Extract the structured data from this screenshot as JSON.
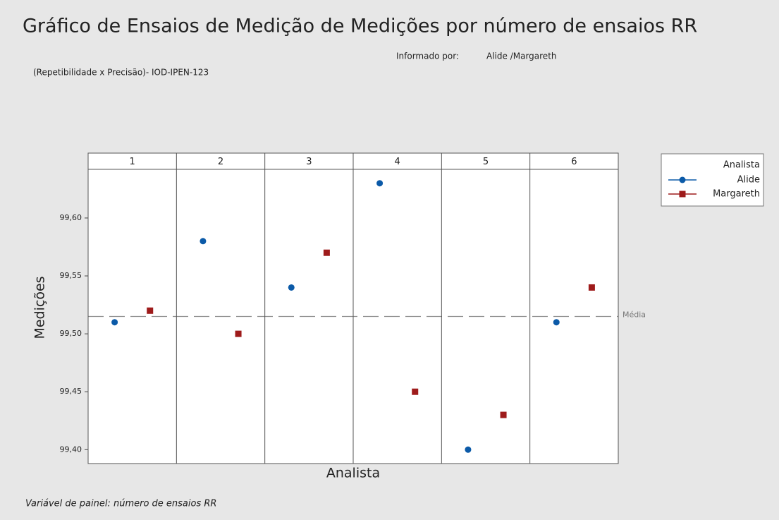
{
  "chart_data": {
    "type": "panel_dot",
    "title": "Gráfico de Ensaios de Medição de Medições por número de ensaios RR",
    "reported_by_label": "Informado por:",
    "reported_by": "Alide /Margareth",
    "subtitle": "(Repetibilidade x Precisão)- IOD-IPEN-123",
    "y_label": "Medições",
    "x_label": "Analista",
    "footnote": "Variável de painel: número de ensaios RR",
    "panels": [
      "1",
      "2",
      "3",
      "4",
      "5",
      "6"
    ],
    "legend_title": "Analista",
    "series": [
      {
        "name": "Alide",
        "color": "#0b5aa8",
        "marker": "circle",
        "values": [
          99.51,
          99.58,
          99.54,
          99.63,
          99.4,
          99.51
        ]
      },
      {
        "name": "Margareth",
        "color": "#9e1b1b",
        "marker": "square",
        "values": [
          99.52,
          99.5,
          99.57,
          99.45,
          99.43,
          99.54
        ]
      }
    ],
    "reference_line": {
      "value": 99.515,
      "label": "Média"
    },
    "ylim": [
      99.388,
      99.642
    ],
    "yticks": [
      {
        "value": 99.4,
        "label": "99,40"
      },
      {
        "value": 99.45,
        "label": "99,45"
      },
      {
        "value": 99.5,
        "label": "99,50"
      },
      {
        "value": 99.55,
        "label": "99,55"
      },
      {
        "value": 99.6,
        "label": "99,60"
      }
    ]
  }
}
